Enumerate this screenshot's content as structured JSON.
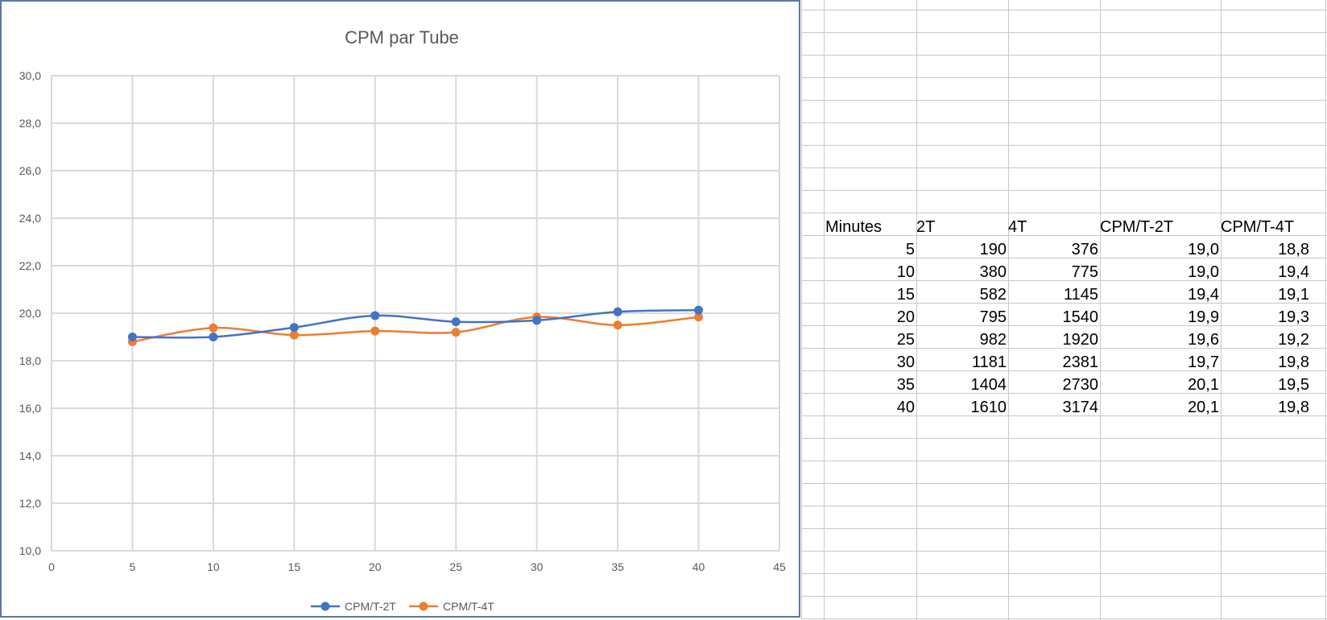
{
  "chart_data": {
    "type": "line",
    "title": "CPM par Tube",
    "xlabel": "",
    "ylabel": "",
    "x": [
      5,
      10,
      15,
      20,
      25,
      30,
      35,
      40
    ],
    "series": [
      {
        "name": "CPM/T-2T",
        "color": "#4472c4",
        "values": [
          19.0,
          19.0,
          19.4,
          19.9,
          19.64,
          19.7,
          20.06,
          20.13
        ]
      },
      {
        "name": "CPM/T-4T",
        "color": "#ed7d31",
        "values": [
          18.8,
          19.38,
          19.08,
          19.25,
          19.2,
          19.84,
          19.5,
          19.84
        ]
      }
    ],
    "xlim": [
      0,
      45
    ],
    "ylim": [
      10,
      30
    ],
    "x_ticks": [
      "0",
      "5",
      "10",
      "15",
      "20",
      "25",
      "30",
      "35",
      "40",
      "45"
    ],
    "y_ticks": [
      "10,0",
      "12,0",
      "14,0",
      "16,0",
      "18,0",
      "20,0",
      "22,0",
      "24,0",
      "26,0",
      "28,0",
      "30,0"
    ],
    "grid": true,
    "legend_position": "bottom"
  },
  "table": {
    "headers": [
      "Minutes",
      "2T",
      "4T",
      "CPM/T-2T",
      "CPM/T-4T"
    ],
    "rows": [
      [
        "5",
        "190",
        "376",
        "19,0",
        "18,8"
      ],
      [
        "10",
        "380",
        "775",
        "19,0",
        "19,4"
      ],
      [
        "15",
        "582",
        "1145",
        "19,4",
        "19,1"
      ],
      [
        "20",
        "795",
        "1540",
        "19,9",
        "19,3"
      ],
      [
        "25",
        "982",
        "1920",
        "19,6",
        "19,2"
      ],
      [
        "30",
        "1181",
        "2381",
        "19,7",
        "19,8"
      ],
      [
        "35",
        "1404",
        "2730",
        "20,1",
        "19,5"
      ],
      [
        "40",
        "1610",
        "3174",
        "20,1",
        "19,8"
      ]
    ]
  }
}
